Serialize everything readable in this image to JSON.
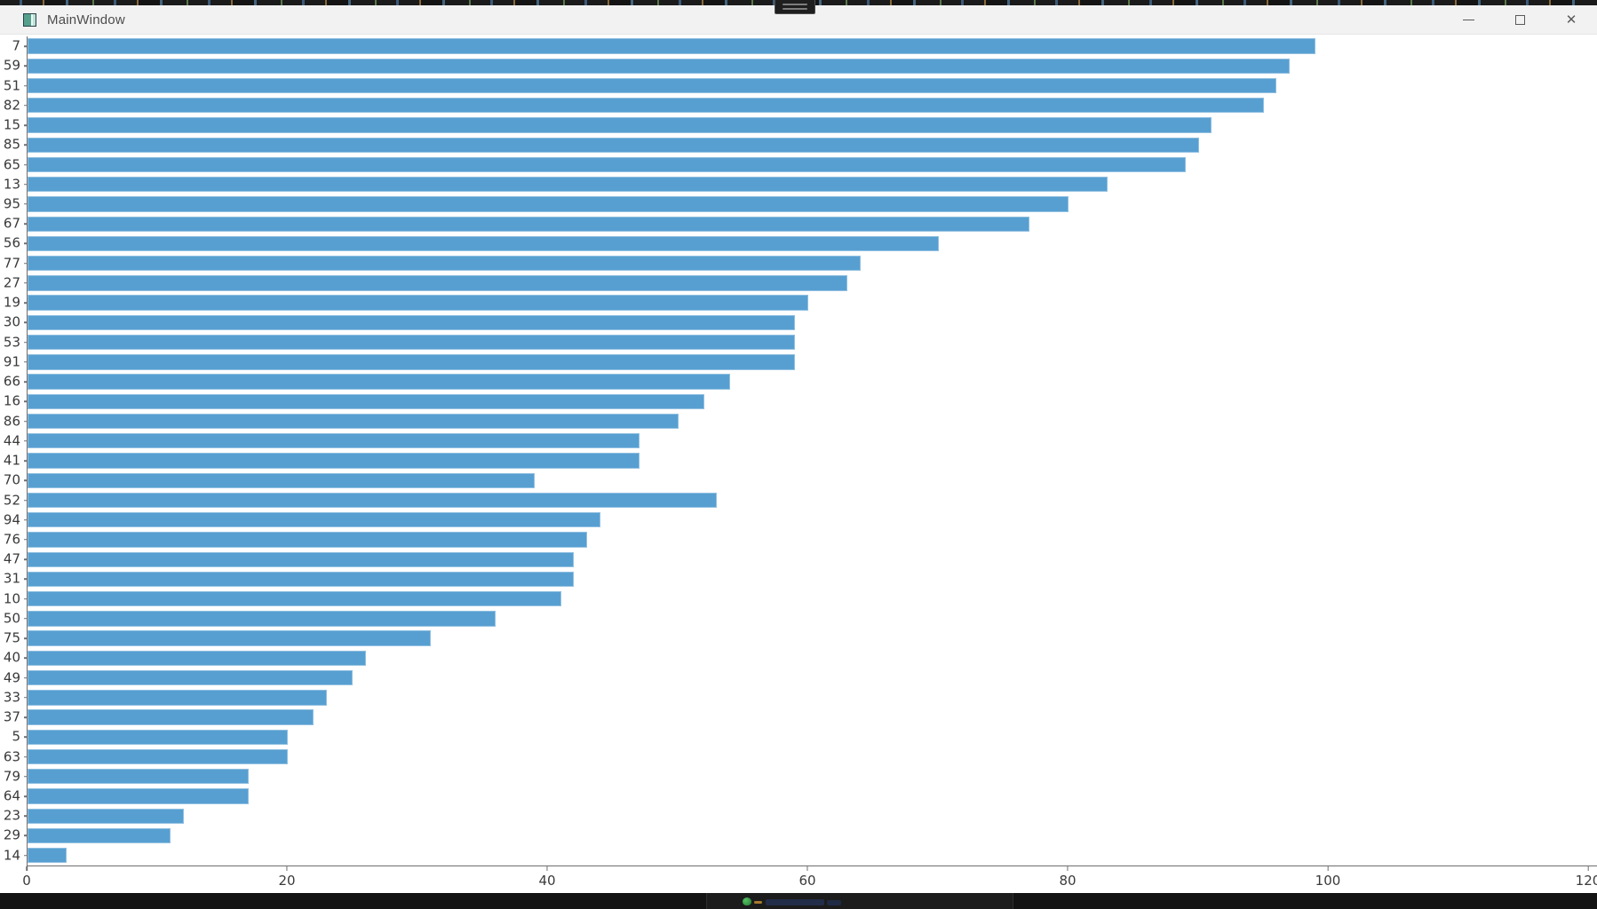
{
  "window": {
    "title": "MainWindow",
    "icons": {
      "app": "window-icon",
      "minimize": "minimize-icon",
      "maximize": "maximize-icon",
      "close": "close-icon"
    },
    "close_glyph": "✕"
  },
  "chart_data": {
    "type": "bar",
    "orientation": "horizontal",
    "title": "",
    "xlabel": "",
    "ylabel": "",
    "categories": [
      "7",
      "59",
      "51",
      "82",
      "15",
      "85",
      "65",
      "13",
      "95",
      "67",
      "56",
      "77",
      "27",
      "19",
      "30",
      "53",
      "91",
      "66",
      "16",
      "86",
      "44",
      "41",
      "70",
      "52",
      "94",
      "76",
      "47",
      "31",
      "10",
      "50",
      "75",
      "40",
      "49",
      "33",
      "37",
      "5",
      "63",
      "79",
      "64",
      "23",
      "29",
      "14"
    ],
    "values": [
      99,
      97,
      96,
      95,
      91,
      90,
      89,
      83,
      80,
      77,
      70,
      64,
      63,
      60,
      59,
      59,
      59,
      54,
      52,
      50,
      47,
      47,
      39,
      53,
      44,
      43,
      42,
      42,
      41,
      36,
      31,
      26,
      25,
      23,
      22,
      20,
      20,
      17,
      17,
      12,
      11,
      3
    ],
    "x_ticks": [
      0,
      20,
      40,
      60,
      80,
      100,
      120
    ],
    "xlim": [
      0,
      120
    ],
    "bar_color": "#579fd1",
    "axis_color": "#6e6e6e",
    "tick_label_color": "#3a3a3a",
    "grid": false,
    "legend": null
  },
  "colors": {
    "titlebar_bg": "#f2f2f2",
    "chart_bg": "#ffffff",
    "background_strip": "#131313",
    "tray_green": "#2f9e44"
  }
}
